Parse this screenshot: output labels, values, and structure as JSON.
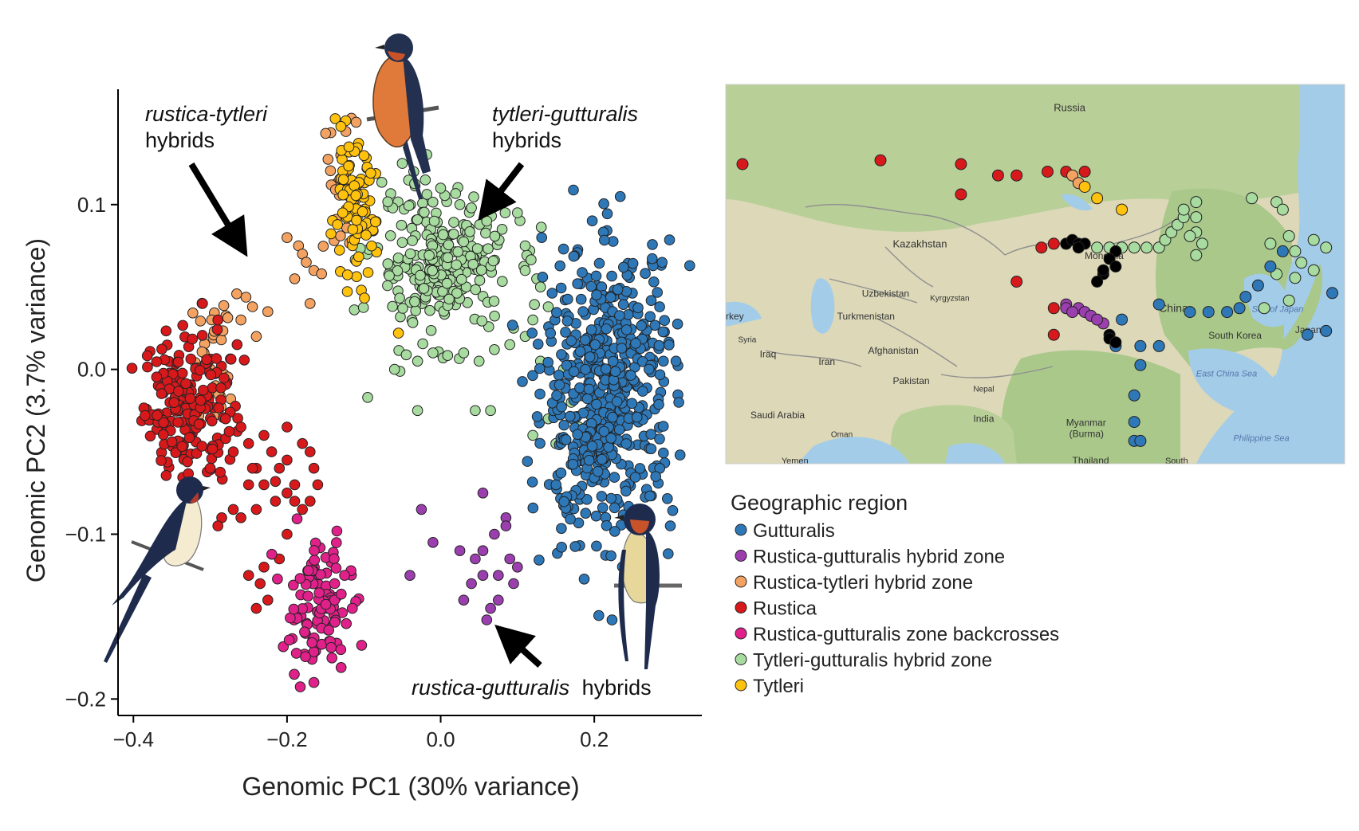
{
  "chart_data": [
    {
      "type": "scatter",
      "title": "",
      "xlabel": "Genomic PC1 (30% variance)",
      "ylabel": "Genomic PC2 (3.7% variance)",
      "xlim": [
        -0.42,
        0.34
      ],
      "ylim": [
        -0.21,
        0.17
      ],
      "x_ticks": [
        -0.4,
        -0.2,
        0.0,
        0.2
      ],
      "x_tick_labels": [
        "−0.4",
        "−0.2",
        "0.0",
        "0.2"
      ],
      "y_ticks": [
        -0.2,
        -0.1,
        0.0,
        0.1
      ],
      "y_tick_labels": [
        "−0.2",
        "−0.1",
        "0.0",
        "0.1"
      ],
      "grid": false,
      "annotations": [
        {
          "italic": "rustica-tytleri",
          "text": "hybrids"
        },
        {
          "italic": "tytleri-gutturalis",
          "text": "hybrids"
        },
        {
          "italic": "rustica-gutturalis",
          "text": "hybrids"
        }
      ],
      "series": [
        {
          "name": "Gutturalis",
          "color": "#2E78B8",
          "clusters": [
            {
              "cx": 0.22,
              "cy": -0.01,
              "sx": 0.042,
              "sy": 0.042,
              "n": 520
            },
            {
              "cx": 0.17,
              "cy": -0.08,
              "sx": 0.02,
              "sy": 0.018,
              "n": 30
            }
          ],
          "points": [
            [
              0.16,
              0.073
            ],
            [
              0.28,
              -0.065
            ],
            [
              0.31,
              -0.02
            ],
            [
              0.29,
              0.005
            ]
          ]
        },
        {
          "name": "Rustica-gutturalis hybrid zone",
          "color": "#9B3FAF",
          "points": [
            [
              0.055,
              -0.075
            ],
            [
              0.085,
              -0.09
            ],
            [
              0.07,
              -0.1
            ],
            [
              0.055,
              -0.11
            ],
            [
              0.09,
              -0.115
            ],
            [
              0.075,
              -0.125
            ],
            [
              0.055,
              -0.125
            ],
            [
              0.095,
              -0.13
            ],
            [
              0.075,
              -0.14
            ],
            [
              0.04,
              -0.13
            ],
            [
              0.025,
              -0.11
            ],
            [
              0.065,
              -0.145
            ],
            [
              -0.025,
              -0.085
            ],
            [
              -0.01,
              -0.105
            ],
            [
              -0.04,
              -0.125
            ],
            [
              0.03,
              -0.14
            ],
            [
              0.06,
              -0.152
            ],
            [
              0.1,
              -0.12
            ],
            [
              0.085,
              -0.095
            ],
            [
              0.045,
              -0.115
            ]
          ]
        },
        {
          "name": "Rustica-tytleri hybrid zone",
          "color": "#F4A261",
          "clusters": [
            {
              "cx": -0.13,
              "cy": 0.108,
              "sx": 0.018,
              "sy": 0.022,
              "n": 28
            },
            {
              "cx": -0.29,
              "cy": 0.005,
              "sx": 0.018,
              "sy": 0.02,
              "n": 32
            }
          ],
          "points": [
            [
              -0.2,
              0.08
            ],
            [
              -0.185,
              0.075
            ],
            [
              -0.18,
              0.07
            ],
            [
              -0.175,
              0.065
            ],
            [
              -0.165,
              0.06
            ],
            [
              -0.155,
              0.058
            ],
            [
              -0.19,
              0.055
            ],
            [
              -0.225,
              0.035
            ],
            [
              -0.245,
              0.038
            ],
            [
              -0.26,
              0.03
            ],
            [
              -0.17,
              0.04
            ],
            [
              -0.24,
              0.02
            ],
            [
              -0.11,
              0.15
            ],
            [
              -0.13,
              0.13
            ]
          ]
        },
        {
          "name": "Rustica",
          "color": "#D7191C",
          "clusters": [
            {
              "cx": -0.33,
              "cy": -0.02,
              "sx": 0.028,
              "sy": 0.022,
              "n": 190
            }
          ],
          "points": [
            [
              -0.28,
              -0.03
            ],
            [
              -0.27,
              -0.05
            ],
            [
              -0.26,
              -0.035
            ],
            [
              -0.25,
              -0.045
            ],
            [
              -0.24,
              -0.06
            ],
            [
              -0.23,
              -0.04
            ],
            [
              -0.22,
              -0.05
            ],
            [
              -0.21,
              -0.06
            ],
            [
              -0.2,
              -0.035
            ],
            [
              -0.2,
              -0.055
            ],
            [
              -0.18,
              -0.045
            ],
            [
              -0.19,
              -0.07
            ],
            [
              -0.17,
              -0.05
            ],
            [
              -0.165,
              -0.06
            ],
            [
              -0.16,
              -0.07
            ],
            [
              -0.17,
              -0.08
            ],
            [
              -0.18,
              -0.085
            ],
            [
              -0.19,
              -0.08
            ],
            [
              -0.2,
              -0.075
            ],
            [
              -0.215,
              -0.08
            ],
            [
              -0.23,
              -0.07
            ],
            [
              -0.25,
              -0.07
            ],
            [
              -0.27,
              -0.085
            ],
            [
              -0.285,
              -0.09
            ],
            [
              -0.29,
              -0.095
            ],
            [
              -0.26,
              -0.09
            ],
            [
              -0.24,
              -0.085
            ],
            [
              -0.23,
              -0.12
            ],
            [
              -0.235,
              -0.13
            ],
            [
              -0.24,
              -0.145
            ],
            [
              -0.225,
              -0.14
            ],
            [
              -0.2,
              -0.1
            ],
            [
              -0.21,
              -0.115
            ],
            [
              -0.25,
              -0.125
            ],
            [
              -0.245,
              -0.06
            ],
            [
              -0.215,
              -0.068
            ],
            [
              -0.3,
              -0.06
            ],
            [
              -0.31,
              0.04
            ],
            [
              -0.29,
              0.03
            ],
            [
              -0.265,
              0.015
            ]
          ]
        },
        {
          "name": "Rustica-gutturalis zone backcrosses",
          "color": "#E0218A",
          "clusters": [
            {
              "cx": -0.16,
              "cy": -0.145,
              "sx": 0.022,
              "sy": 0.02,
              "n": 105
            }
          ],
          "points": [
            [
              -0.165,
              -0.19
            ],
            [
              -0.125,
              -0.125
            ],
            [
              -0.115,
              -0.145
            ],
            [
              -0.13,
              -0.17
            ]
          ]
        },
        {
          "name": "Tytleri-gutturalis hybrid zone",
          "color": "#A8DBA0",
          "clusters": [
            {
              "cx": 0.0,
              "cy": 0.065,
              "sx": 0.045,
              "sy": 0.022,
              "n": 250
            }
          ],
          "points": [
            [
              -0.05,
              0.125
            ],
            [
              -0.035,
              0.12
            ],
            [
              -0.02,
              0.115
            ],
            [
              0.0,
              0.11
            ],
            [
              0.025,
              0.1
            ],
            [
              0.04,
              0.098
            ],
            [
              0.06,
              0.09
            ],
            [
              0.08,
              0.085
            ],
            [
              0.1,
              0.095
            ],
            [
              0.11,
              0.075
            ],
            [
              0.11,
              0.06
            ],
            [
              0.125,
              0.055
            ],
            [
              0.13,
              0.05
            ],
            [
              0.14,
              0.038
            ],
            [
              0.12,
              0.03
            ],
            [
              0.11,
              0.02
            ],
            [
              0.09,
              0.015
            ],
            [
              0.07,
              0.012
            ],
            [
              0.05,
              0.005
            ],
            [
              0.03,
              0.01
            ],
            [
              -0.01,
              0.01
            ],
            [
              -0.03,
              0.005
            ],
            [
              -0.06,
              0.0
            ],
            [
              0.045,
              -0.025
            ],
            [
              0.095,
              0.025
            ],
            [
              0.12,
              -0.04
            ],
            [
              0.15,
              -0.045
            ],
            [
              0.14,
              -0.03
            ],
            [
              -0.095,
              -0.017
            ],
            [
              -0.03,
              -0.025
            ],
            [
              0.065,
              -0.025
            ],
            [
              0.13,
              0.005
            ],
            [
              0.16,
              0.0
            ],
            [
              0.17,
              -0.02
            ],
            [
              0.18,
              -0.035
            ],
            [
              0.215,
              -0.045
            ],
            [
              0.23,
              -0.01
            ],
            [
              0.21,
              0.02
            ]
          ]
        },
        {
          "name": "Tytleri",
          "color": "#FFC20E",
          "clusters": [
            {
              "cx": -0.115,
              "cy": 0.095,
              "sx": 0.015,
              "sy": 0.02,
              "n": 95
            }
          ],
          "points": [
            [
              -0.055,
              0.022
            ]
          ]
        }
      ]
    },
    {
      "type": "map",
      "labels": [
        "Russia",
        "Kazakhstan",
        "Mongolia",
        "Uzbekistan",
        "Kyrgyzstan",
        "Turkmenistan",
        "rkey",
        "Syria",
        "Iraq",
        "Iran",
        "Afghanistan",
        "Pakistan",
        "Nepal",
        "India",
        "Saudi Arabia",
        "Oman",
        "Yemen",
        "Myanmar",
        "(Burma)",
        "Thailand",
        "South",
        "China",
        "South Korea",
        "Japan",
        "Sea of Japan",
        "East China Sea",
        "Philippine Sea"
      ],
      "legend_title": "Geographic region",
      "legend_items": [
        "Gutturalis",
        "Rustica-gutturalis hybrid zone",
        "Rustica-tytleri hybrid zone",
        "Rustica",
        "Rustica-gutturalis zone backcrosses",
        "Tytleri-gutturalis hybrid zone",
        "Tytleri"
      ],
      "sites": [
        {
          "region": "Rustica",
          "lonlat": [
            [
              0.027,
              0.21
            ],
            [
              0.25,
              0.2
            ],
            [
              0.38,
              0.21
            ],
            [
              0.44,
              0.24
            ],
            [
              0.47,
              0.24
            ],
            [
              0.52,
              0.23
            ],
            [
              0.55,
              0.23
            ],
            [
              0.58,
              0.23
            ],
            [
              0.38,
              0.29
            ],
            [
              0.51,
              0.43
            ],
            [
              0.53,
              0.42
            ],
            [
              0.55,
              0.42
            ],
            [
              0.47,
              0.52
            ],
            [
              0.53,
              0.59
            ],
            [
              0.53,
              0.66
            ]
          ]
        },
        {
          "region": "Rustica-tytleri hybrid zone",
          "lonlat": [
            [
              0.56,
              0.24
            ],
            [
              0.57,
              0.26
            ]
          ]
        },
        {
          "region": "Tytleri",
          "lonlat": [
            [
              0.58,
              0.27
            ],
            [
              0.6,
              0.3
            ],
            [
              0.64,
              0.33
            ]
          ]
        },
        {
          "region": "Tytleri-gutturalis hybrid zone",
          "lonlat": [
            [
              0.6,
              0.43
            ],
            [
              0.62,
              0.43
            ],
            [
              0.64,
              0.43
            ],
            [
              0.66,
              0.43
            ],
            [
              0.68,
              0.43
            ],
            [
              0.7,
              0.43
            ],
            [
              0.71,
              0.41
            ],
            [
              0.72,
              0.39
            ],
            [
              0.73,
              0.37
            ],
            [
              0.74,
              0.35
            ],
            [
              0.74,
              0.33
            ],
            [
              0.76,
              0.35
            ],
            [
              0.76,
              0.39
            ],
            [
              0.77,
              0.42
            ],
            [
              0.76,
              0.45
            ],
            [
              0.76,
              0.31
            ],
            [
              0.85,
              0.3
            ],
            [
              0.89,
              0.31
            ],
            [
              0.9,
              0.33
            ],
            [
              0.91,
              0.4
            ],
            [
              0.92,
              0.44
            ],
            [
              0.93,
              0.47
            ],
            [
              0.95,
              0.49
            ],
            [
              0.89,
              0.5
            ],
            [
              0.92,
              0.51
            ],
            [
              0.87,
              0.59
            ],
            [
              0.91,
              0.57
            ],
            [
              0.88,
              0.42
            ],
            [
              0.95,
              0.41
            ],
            [
              0.97,
              0.43
            ],
            [
              0.75,
              0.4
            ]
          ]
        },
        {
          "region": "Gutturalis",
          "lonlat": [
            [
              0.9,
              0.44
            ],
            [
              0.88,
              0.48
            ],
            [
              0.86,
              0.53
            ],
            [
              0.84,
              0.56
            ],
            [
              0.83,
              0.59
            ],
            [
              0.81,
              0.6
            ],
            [
              0.78,
              0.6
            ],
            [
              0.75,
              0.6
            ],
            [
              0.7,
              0.58
            ],
            [
              0.64,
              0.62
            ],
            [
              0.63,
              0.69
            ],
            [
              0.67,
              0.69
            ],
            [
              0.7,
              0.69
            ],
            [
              0.67,
              0.74
            ],
            [
              0.66,
              0.82
            ],
            [
              0.66,
              0.89
            ],
            [
              0.66,
              0.94
            ],
            [
              0.67,
              0.94
            ],
            [
              0.94,
              0.66
            ],
            [
              0.97,
              0.65
            ],
            [
              0.98,
              0.55
            ]
          ]
        },
        {
          "region": "Rustica-gutturalis hybrid zone",
          "lonlat": [
            [
              0.55,
              0.58
            ],
            [
              0.57,
              0.59
            ],
            [
              0.58,
              0.6
            ],
            [
              0.59,
              0.61
            ],
            [
              0.61,
              0.63
            ],
            [
              0.55,
              0.59
            ],
            [
              0.56,
              0.6
            ],
            [
              0.6,
              0.62
            ]
          ]
        },
        {
          "region": "Rustica-gutturalis zone backcrosses",
          "lonlat": []
        },
        {
          "region": "unassigned",
          "color": "#000000",
          "lonlat": [
            [
              0.55,
              0.42
            ],
            [
              0.56,
              0.41
            ],
            [
              0.57,
              0.42
            ],
            [
              0.58,
              0.42
            ],
            [
              0.57,
              0.43
            ],
            [
              0.63,
              0.44
            ],
            [
              0.62,
              0.46
            ],
            [
              0.63,
              0.48
            ],
            [
              0.61,
              0.5
            ],
            [
              0.6,
              0.52
            ],
            [
              0.61,
              0.49
            ],
            [
              0.62,
              0.66
            ],
            [
              0.62,
              0.67
            ],
            [
              0.63,
              0.68
            ]
          ]
        }
      ]
    }
  ]
}
